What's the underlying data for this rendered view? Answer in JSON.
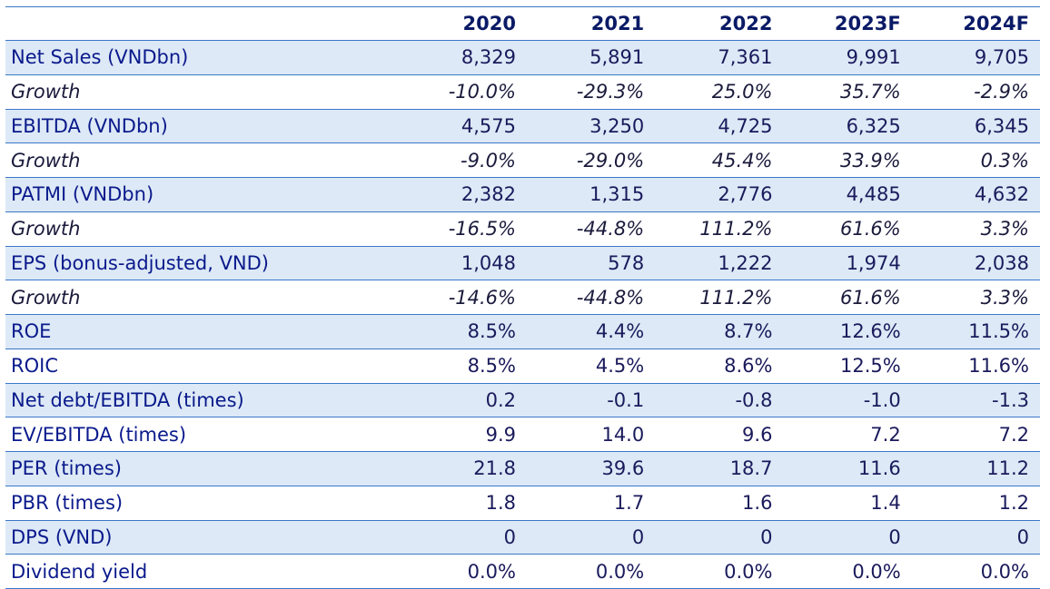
{
  "headers": [
    "",
    "2020",
    "2021",
    "2022",
    "2023F",
    "2024F"
  ],
  "rows": [
    {
      "label": "Net Sales (VNDbn)",
      "values": [
        "8,329",
        "5,891",
        "7,361",
        "9,991",
        "9,705"
      ],
      "italic": false,
      "shade": true
    },
    {
      "label": "Growth",
      "values": [
        "-10.0%",
        "-29.3%",
        "25.0%",
        "35.7%",
        "-2.9%"
      ],
      "italic": true,
      "shade": false
    },
    {
      "label": "EBITDA (VNDbn)",
      "values": [
        "4,575",
        "3,250",
        "4,725",
        "6,325",
        "6,345"
      ],
      "italic": false,
      "shade": true
    },
    {
      "label": "Growth",
      "values": [
        "-9.0%",
        "-29.0%",
        "45.4%",
        "33.9%",
        "0.3%"
      ],
      "italic": true,
      "shade": false
    },
    {
      "label": "PATMI (VNDbn)",
      "values": [
        "2,382",
        "1,315",
        "2,776",
        "4,485",
        "4,632"
      ],
      "italic": false,
      "shade": true
    },
    {
      "label": "Growth",
      "values": [
        "-16.5%",
        "-44.8%",
        "111.2%",
        "61.6%",
        "3.3%"
      ],
      "italic": true,
      "shade": false
    },
    {
      "label": "EPS (bonus-adjusted, VND)",
      "values": [
        "1,048",
        "578",
        "1,222",
        "1,974",
        "2,038"
      ],
      "italic": false,
      "shade": true
    },
    {
      "label": "Growth",
      "values": [
        "-14.6%",
        "-44.8%",
        "111.2%",
        "61.6%",
        "3.3%"
      ],
      "italic": true,
      "shade": false
    },
    {
      "label": "ROE",
      "values": [
        "8.5%",
        "4.4%",
        "8.7%",
        "12.6%",
        "11.5%"
      ],
      "italic": false,
      "shade": true
    },
    {
      "label": "ROIC",
      "values": [
        "8.5%",
        "4.5%",
        "8.6%",
        "12.5%",
        "11.6%"
      ],
      "italic": false,
      "shade": false
    },
    {
      "label": "Net debt/EBITDA (times)",
      "values": [
        "0.2",
        "-0.1",
        "-0.8",
        "-1.0",
        "-1.3"
      ],
      "italic": false,
      "shade": true
    },
    {
      "label": "EV/EBITDA (times)",
      "values": [
        "9.9",
        "14.0",
        "9.6",
        "7.2",
        "7.2"
      ],
      "italic": false,
      "shade": false
    },
    {
      "label": "PER (times)",
      "values": [
        "21.8",
        "39.6",
        "18.7",
        "11.6",
        "11.2"
      ],
      "italic": false,
      "shade": true
    },
    {
      "label": "PBR (times)",
      "values": [
        "1.8",
        "1.7",
        "1.6",
        "1.4",
        "1.2"
      ],
      "italic": false,
      "shade": false
    },
    {
      "label": "DPS (VND)",
      "values": [
        "0",
        "0",
        "0",
        "0",
        "0"
      ],
      "italic": false,
      "shade": true
    },
    {
      "label": "Dividend yield",
      "values": [
        "0.0%",
        "0.0%",
        "0.0%",
        "0.0%",
        "0.0%"
      ],
      "italic": false,
      "shade": false
    }
  ],
  "colors": {
    "accent": "#3a78c8",
    "shade": "#dde9f6",
    "text": "#1a1a5c",
    "header": "#0a1a66"
  }
}
